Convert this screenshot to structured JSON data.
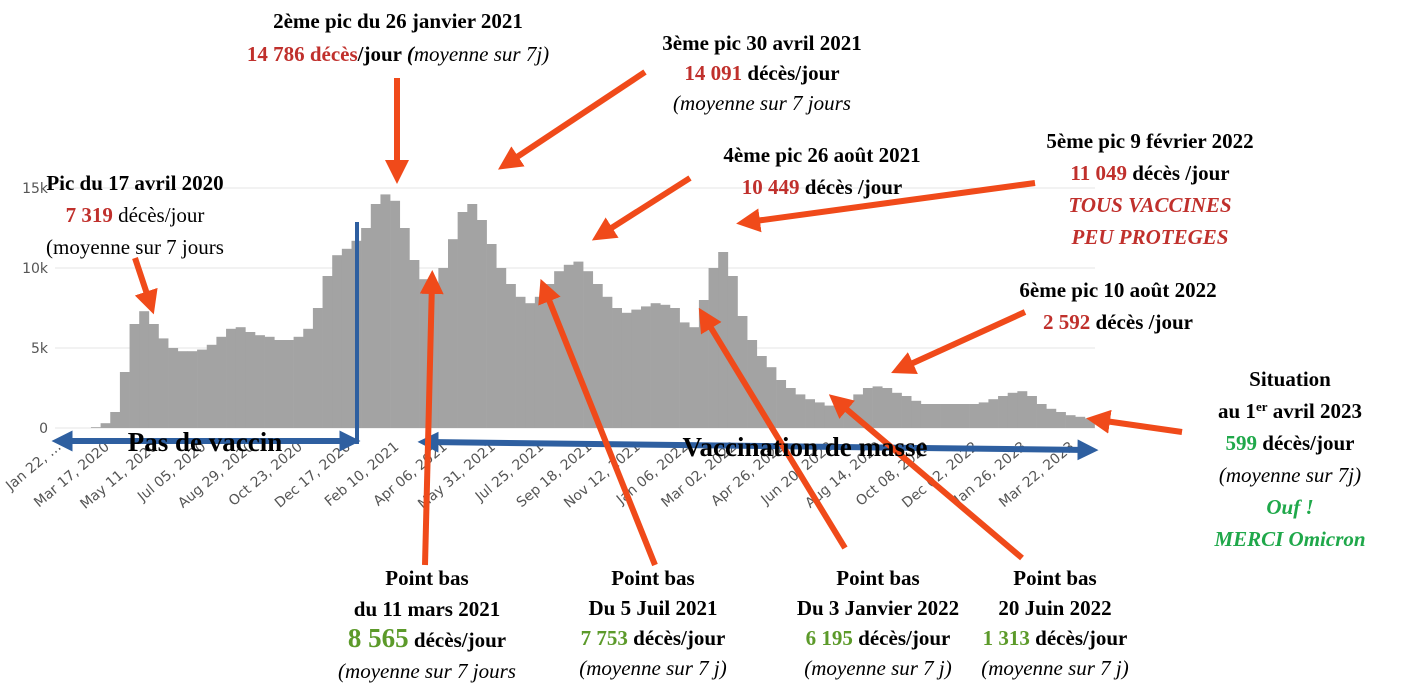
{
  "chart_data": {
    "type": "bar",
    "color": "#a3a3a3",
    "grid": true,
    "ylim": [
      0,
      16500
    ],
    "yticks": [
      0,
      {
        "value": 5000,
        "label": "5k"
      },
      {
        "value": 10000,
        "label": "10k"
      },
      {
        "value": 15000,
        "label": "15k"
      }
    ],
    "categories": [
      "Jan 22, …",
      null,
      null,
      null,
      null,
      "Mar 17, 2020",
      null,
      null,
      null,
      null,
      "May 11, 2020",
      null,
      null,
      null,
      null,
      "Jul 05, 2020",
      null,
      null,
      null,
      null,
      "Aug 29, 2020",
      null,
      null,
      null,
      null,
      "Oct 23, 2020",
      null,
      null,
      null,
      null,
      "Dec 17, 2020",
      null,
      null,
      null,
      null,
      "Feb 10, 2021",
      null,
      null,
      null,
      null,
      "Apr 06, 2021",
      null,
      null,
      null,
      null,
      "May 31, 2021",
      null,
      null,
      null,
      null,
      "Jul 25, 2021",
      null,
      null,
      null,
      null,
      "Sep 18, 2021",
      null,
      null,
      null,
      null,
      "Nov 12, 2021",
      null,
      null,
      null,
      null,
      "Jan 06, 2022",
      null,
      null,
      null,
      null,
      "Mar 02, 2022",
      null,
      null,
      null,
      null,
      "Apr 26, 2022",
      null,
      null,
      null,
      null,
      "Jun 20, 2022",
      null,
      null,
      null,
      null,
      "Aug 14, 2022",
      null,
      null,
      null,
      null,
      "Oct 08, 2022",
      null,
      null,
      null,
      null,
      "Dec 02, 2022",
      null,
      null,
      null,
      null,
      "Jan 26, 2023",
      null,
      null,
      null,
      null,
      "Mar 22, 2023",
      null
    ],
    "values": [
      0,
      0,
      0,
      50,
      300,
      1000,
      3500,
      6500,
      7300,
      6500,
      5600,
      5000,
      4800,
      4800,
      4900,
      5200,
      5700,
      6200,
      6300,
      6000,
      5800,
      5700,
      5500,
      5500,
      5700,
      6200,
      7500,
      9500,
      10800,
      11200,
      11700,
      12500,
      14000,
      14600,
      14200,
      12500,
      10500,
      9300,
      8800,
      10000,
      11800,
      13500,
      14000,
      13000,
      11500,
      10000,
      9000,
      8200,
      7800,
      8200,
      9000,
      9800,
      10200,
      10400,
      9800,
      9000,
      8200,
      7500,
      7200,
      7400,
      7600,
      7800,
      7700,
      7500,
      6600,
      6300,
      8000,
      10000,
      11000,
      9500,
      7000,
      5500,
      4500,
      3800,
      3000,
      2500,
      2100,
      1800,
      1600,
      1400,
      1350,
      1600,
      2100,
      2500,
      2600,
      2500,
      2200,
      2000,
      1700,
      1500,
      1500,
      1500,
      1500,
      1500,
      1500,
      1600,
      1800,
      2000,
      2200,
      2300,
      2000,
      1500,
      1200,
      1000,
      800,
      700,
      600
    ],
    "periods": [
      "Pas de vaccin",
      "Vaccination de masse"
    ],
    "annotations": [
      {
        "lines": [
          [
            {
              "text": "2ème pic du 26 janvier 2021",
              "bold": true
            }
          ],
          [
            {
              "text": "14 786 décès",
              "bold": true,
              "color": "#c0302c"
            },
            {
              "text": "/jour ",
              "bold": true
            },
            {
              "text": "(",
              "bold": true,
              "italic": true
            },
            {
              "text": "moyenne sur 7j)",
              "italic": true
            }
          ]
        ]
      },
      {
        "lines": [
          [
            {
              "text": "3ème pic  30 avril 2021",
              "bold": true
            }
          ],
          [
            {
              "text": "14 091",
              "bold": true,
              "color": "#c0302c"
            },
            {
              "text": " décès/jour",
              "bold": true
            }
          ],
          [
            {
              "text": "(moyenne sur 7 jours",
              "italic": true
            }
          ]
        ]
      },
      {
        "lines": [
          [
            {
              "text": "Pic du 17 avril 2020",
              "bold": true
            }
          ],
          [
            {
              "text": "7 319",
              "bold": true,
              "color": "#c0302c"
            },
            {
              "text": " décès/jour"
            }
          ],
          [
            {
              "text": "(moyenne sur 7 jours"
            }
          ]
        ]
      },
      {
        "lines": [
          [
            {
              "text": "4ème pic 26 août 2021",
              "bold": true
            }
          ],
          [
            {
              "text": "10 449",
              "bold": true,
              "color": "#c0302c"
            },
            {
              "text": " décès /jour",
              "bold": true
            }
          ]
        ]
      },
      {
        "lines": [
          [
            {
              "text": "5ème pic 9 février 2022",
              "bold": true
            }
          ],
          [
            {
              "text": "11 049",
              "bold": true,
              "color": "#c0302c"
            },
            {
              "text": " décès /jour",
              "bold": true
            }
          ],
          [
            {
              "text": "TOUS VACCINES",
              "bold": true,
              "italic": true,
              "color": "#c0302c"
            }
          ],
          [
            {
              "text": "PEU PROTEGES",
              "bold": true,
              "italic": true,
              "color": "#c0302c"
            }
          ]
        ]
      },
      {
        "lines": [
          [
            {
              "text": "6ème pic 10 août 2022",
              "bold": true
            }
          ],
          [
            {
              "text": "2 592",
              "bold": true,
              "color": "#c0302c"
            },
            {
              "text": " décès /jour",
              "bold": true
            }
          ]
        ]
      },
      {
        "lines": [
          [
            {
              "text": "Situation",
              "bold": true
            }
          ],
          [
            {
              "text": "au 1",
              "bold": true
            },
            {
              "text": "er",
              "bold": true,
              "sup": true
            },
            {
              "text": " avril 2023",
              "bold": true
            }
          ],
          [
            {
              "text": "599",
              "bold": true,
              "color": "#1fa84a"
            },
            {
              "text": " décès/jour",
              "bold": true
            }
          ],
          [
            {
              "text": "(moyenne sur 7j)",
              "italic": true
            }
          ],
          [
            {
              "text": "Ouf !",
              "bold": true,
              "italic": true,
              "color": "#1fa84a"
            }
          ],
          [
            {
              "text": "MERCI Omicron",
              "bold": true,
              "italic": true,
              "color": "#1fa84a"
            }
          ]
        ]
      },
      {
        "lines": [
          [
            {
              "text": "Point bas",
              "bold": true
            }
          ],
          [
            {
              "text": "du 11 mars 2021",
              "bold": true
            }
          ],
          [
            {
              "text": "8 565",
              "bold": true,
              "color": "#5c9a2a"
            },
            {
              "text": " décès/jour",
              "bold": true
            }
          ],
          [
            {
              "text": "(moyenne sur 7 jours",
              "italic": true
            }
          ]
        ]
      },
      {
        "lines": [
          [
            {
              "text": "Point bas",
              "bold": true
            }
          ],
          [
            {
              "text": "Du 5 Juil 2021",
              "bold": true
            }
          ],
          [
            {
              "text": "7 753",
              "bold": true,
              "color": "#5c9a2a"
            },
            {
              "text": " décès/jour",
              "bold": true
            }
          ],
          [
            {
              "text": "(moyenne sur 7 j)",
              "italic": true
            }
          ]
        ]
      },
      {
        "lines": [
          [
            {
              "text": "Point bas",
              "bold": true
            }
          ],
          [
            {
              "text": "Du 3 Janvier 2022",
              "bold": true
            }
          ],
          [
            {
              "text": "6 195",
              "bold": true,
              "color": "#5c9a2a"
            },
            {
              "text": " décès/jour",
              "bold": true
            }
          ],
          [
            {
              "text": "(moyenne sur 7 j)",
              "italic": true
            }
          ]
        ]
      },
      {
        "lines": [
          [
            {
              "text": "Point bas",
              "bold": true
            }
          ],
          [
            {
              "text": "20 Juin 2022",
              "bold": true
            }
          ],
          [
            {
              "text": "1 313",
              "bold": true,
              "color": "#5c9a2a"
            },
            {
              "text": " décès/jour",
              "bold": true
            }
          ],
          [
            {
              "text": "(moyenne sur 7 j)",
              "italic": true
            }
          ]
        ]
      }
    ]
  }
}
